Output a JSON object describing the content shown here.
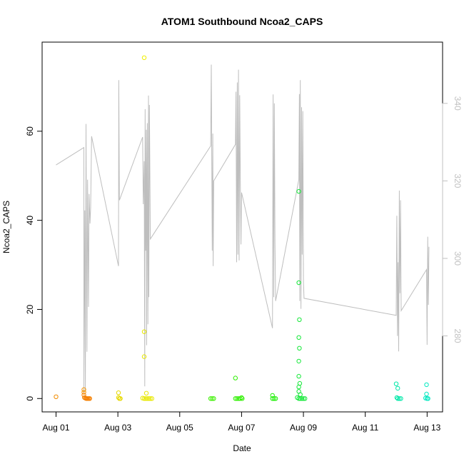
{
  "chart_data": {
    "type": "scatter",
    "title": "ATOM1 Southbound Ncoa2_CAPS",
    "xlabel": "Date",
    "ylabel": "Ncoa2_CAPS",
    "x_ticks": [
      "Aug 01",
      "Aug 03",
      "Aug 05",
      "Aug 07",
      "Aug 09",
      "Aug 11",
      "Aug 13"
    ],
    "x_tick_days": [
      1,
      3,
      5,
      7,
      9,
      11,
      13
    ],
    "xlim_days": [
      0.55,
      13.5
    ],
    "ylim": [
      -3,
      80
    ],
    "y_ticks": [
      0,
      20,
      40,
      60
    ],
    "y2_ticks": [
      280,
      300,
      320,
      340
    ],
    "y2lim": [
      260.4,
      355.8
    ],
    "colors": {
      "line": "#bebebe",
      "right_axis": "#c0c0c0",
      "axis": "#000000"
    },
    "points": [
      {
        "day": 1.0,
        "y": 0.4,
        "color": "#f28c00"
      },
      {
        "day": 1.9,
        "y": 2.0,
        "color": "#f59400"
      },
      {
        "day": 1.9,
        "y": 1.4,
        "color": "#f59400"
      },
      {
        "day": 1.9,
        "y": 0.8,
        "color": "#f57f00"
      },
      {
        "day": 1.92,
        "y": 0.2,
        "color": "#f57f00"
      },
      {
        "day": 1.95,
        "y": 0.1,
        "color": "#f57f00"
      },
      {
        "day": 1.98,
        "y": 0.0,
        "color": "#f57f00"
      },
      {
        "day": 2.0,
        "y": 0.0,
        "color": "#f57f00"
      },
      {
        "day": 2.03,
        "y": 0.0,
        "color": "#f57f00"
      },
      {
        "day": 2.06,
        "y": 0.0,
        "color": "#f57f00"
      },
      {
        "day": 2.09,
        "y": 0.0,
        "color": "#f57f00"
      },
      {
        "day": 3.02,
        "y": 1.3,
        "color": "#e6d800"
      },
      {
        "day": 3.02,
        "y": 0.2,
        "color": "#e6d800"
      },
      {
        "day": 3.05,
        "y": 0.0,
        "color": "#e6d800"
      },
      {
        "day": 3.08,
        "y": 0.0,
        "color": "#e6d800"
      },
      {
        "day": 3.85,
        "y": 76.5,
        "color": "#f0f000"
      },
      {
        "day": 3.85,
        "y": 15.0,
        "color": "#e8e800"
      },
      {
        "day": 3.85,
        "y": 9.4,
        "color": "#e8e800"
      },
      {
        "day": 3.92,
        "y": 1.2,
        "color": "#e8e800"
      },
      {
        "day": 3.8,
        "y": 0.1,
        "color": "#e8e800"
      },
      {
        "day": 3.85,
        "y": 0.0,
        "color": "#e8e800"
      },
      {
        "day": 3.9,
        "y": 0.0,
        "color": "#e8e800"
      },
      {
        "day": 3.95,
        "y": 0.0,
        "color": "#e8e800"
      },
      {
        "day": 4.0,
        "y": 0.0,
        "color": "#e8e800"
      },
      {
        "day": 4.05,
        "y": 0.0,
        "color": "#e8e800"
      },
      {
        "day": 4.1,
        "y": 0.0,
        "color": "#e8e800"
      },
      {
        "day": 6.0,
        "y": 0.0,
        "color": "#3cf000"
      },
      {
        "day": 6.05,
        "y": 0.0,
        "color": "#3cf000"
      },
      {
        "day": 6.1,
        "y": 0.0,
        "color": "#3cf000"
      },
      {
        "day": 6.8,
        "y": 4.6,
        "color": "#2ef000"
      },
      {
        "day": 6.8,
        "y": 0.0,
        "color": "#2ef000"
      },
      {
        "day": 6.85,
        "y": 0.0,
        "color": "#2ef000"
      },
      {
        "day": 6.9,
        "y": 0.0,
        "color": "#2ef000"
      },
      {
        "day": 6.95,
        "y": 0.0,
        "color": "#2ef000"
      },
      {
        "day": 7.0,
        "y": 0.2,
        "color": "#2ef000"
      },
      {
        "day": 7.02,
        "y": 0.0,
        "color": "#2ef000"
      },
      {
        "day": 8.0,
        "y": 0.7,
        "color": "#19ee00"
      },
      {
        "day": 8.0,
        "y": 0.0,
        "color": "#19ee00"
      },
      {
        "day": 8.05,
        "y": 0.0,
        "color": "#19ee00"
      },
      {
        "day": 8.1,
        "y": 0.0,
        "color": "#19ee00"
      },
      {
        "day": 8.85,
        "y": 46.5,
        "color": "#16e83a"
      },
      {
        "day": 8.85,
        "y": 26.0,
        "color": "#16e83a"
      },
      {
        "day": 8.87,
        "y": 17.7,
        "color": "#16e83a"
      },
      {
        "day": 8.85,
        "y": 13.7,
        "color": "#16e83a"
      },
      {
        "day": 8.87,
        "y": 11.3,
        "color": "#16e83a"
      },
      {
        "day": 8.85,
        "y": 8.4,
        "color": "#16e83a"
      },
      {
        "day": 8.85,
        "y": 5.0,
        "color": "#16e83a"
      },
      {
        "day": 8.88,
        "y": 3.4,
        "color": "#16e83a"
      },
      {
        "day": 8.85,
        "y": 2.6,
        "color": "#16e83a"
      },
      {
        "day": 8.85,
        "y": 1.6,
        "color": "#16e83a"
      },
      {
        "day": 8.9,
        "y": 0.9,
        "color": "#16e83a"
      },
      {
        "day": 8.8,
        "y": 0.2,
        "color": "#16e83a"
      },
      {
        "day": 8.85,
        "y": 0.0,
        "color": "#16e83a"
      },
      {
        "day": 8.9,
        "y": 0.0,
        "color": "#16e83a"
      },
      {
        "day": 8.95,
        "y": 0.0,
        "color": "#16e83a"
      },
      {
        "day": 9.0,
        "y": 0.0,
        "color": "#16e83a"
      },
      {
        "day": 9.05,
        "y": 0.0,
        "color": "#16e83a"
      },
      {
        "day": 12.0,
        "y": 3.3,
        "color": "#00e8a8"
      },
      {
        "day": 12.05,
        "y": 2.3,
        "color": "#00e8a8"
      },
      {
        "day": 12.02,
        "y": 0.2,
        "color": "#00e8a8"
      },
      {
        "day": 12.05,
        "y": 0.0,
        "color": "#00e8a8"
      },
      {
        "day": 12.1,
        "y": 0.0,
        "color": "#00e8a8"
      },
      {
        "day": 12.15,
        "y": 0.0,
        "color": "#00e8a8"
      },
      {
        "day": 12.98,
        "y": 3.1,
        "color": "#00e8c0"
      },
      {
        "day": 12.98,
        "y": 1.0,
        "color": "#00e8c0"
      },
      {
        "day": 12.95,
        "y": 0.1,
        "color": "#00e8c0"
      },
      {
        "day": 13.0,
        "y": 0.0,
        "color": "#00e8c0"
      },
      {
        "day": 13.03,
        "y": 0.0,
        "color": "#00e8c0"
      }
    ],
    "line_y2": [
      [
        1.0,
        324.1
      ],
      [
        1.9,
        328.6
      ],
      [
        1.9,
        265.2
      ],
      [
        1.92,
        294.0
      ],
      [
        1.93,
        312.4
      ],
      [
        1.95,
        265.8
      ],
      [
        1.97,
        334.7
      ],
      [
        2.0,
        275.9
      ],
      [
        2.02,
        320.3
      ],
      [
        2.05,
        287.5
      ],
      [
        2.07,
        316.6
      ],
      [
        2.1,
        309.0
      ],
      [
        2.12,
        313.2
      ],
      [
        2.15,
        331.5
      ],
      [
        3.02,
        298.0
      ],
      [
        3.03,
        346.0
      ],
      [
        3.05,
        315.0
      ],
      [
        3.8,
        331.3
      ],
      [
        3.82,
        314.0
      ],
      [
        3.85,
        325.1
      ],
      [
        3.87,
        267.0
      ],
      [
        3.88,
        338.5
      ],
      [
        3.9,
        302.0
      ],
      [
        3.92,
        333.2
      ],
      [
        3.93,
        277.6
      ],
      [
        3.95,
        334.9
      ],
      [
        3.97,
        283.0
      ],
      [
        3.99,
        342.0
      ],
      [
        4.0,
        290.0
      ],
      [
        4.02,
        339.6
      ],
      [
        4.05,
        305.0
      ],
      [
        6.0,
        329.0
      ],
      [
        6.02,
        350.0
      ],
      [
        6.05,
        302.0
      ],
      [
        6.07,
        332.2
      ],
      [
        6.08,
        298.0
      ],
      [
        6.1,
        320.0
      ],
      [
        6.8,
        329.4
      ],
      [
        6.82,
        343.0
      ],
      [
        6.84,
        299.0
      ],
      [
        6.86,
        345.4
      ],
      [
        6.88,
        301.0
      ],
      [
        6.9,
        348.7
      ],
      [
        6.92,
        299.5
      ],
      [
        6.94,
        342.1
      ],
      [
        6.96,
        319.0
      ],
      [
        6.98,
        303.6
      ],
      [
        7.0,
        317.0
      ],
      [
        8.0,
        282.0
      ],
      [
        8.02,
        342.3
      ],
      [
        8.04,
        290.0
      ],
      [
        8.06,
        340.0
      ],
      [
        8.08,
        304.0
      ],
      [
        8.1,
        289.0
      ],
      [
        8.85,
        320.3
      ],
      [
        8.87,
        342.4
      ],
      [
        8.88,
        289.0
      ],
      [
        8.9,
        346.0
      ],
      [
        8.92,
        287.0
      ],
      [
        8.94,
        339.0
      ],
      [
        8.96,
        301.0
      ],
      [
        8.98,
        338.0
      ],
      [
        9.0,
        294.0
      ],
      [
        9.02,
        289.7
      ],
      [
        12.0,
        285.3
      ],
      [
        12.02,
        311.0
      ],
      [
        12.04,
        280.0
      ],
      [
        12.06,
        299.0
      ],
      [
        12.08,
        276.0
      ],
      [
        12.1,
        317.5
      ],
      [
        12.12,
        291.0
      ],
      [
        12.14,
        315.0
      ],
      [
        12.16,
        286.5
      ],
      [
        12.98,
        297.1
      ],
      [
        13.0,
        277.7
      ],
      [
        13.02,
        305.6
      ],
      [
        13.04,
        288.0
      ],
      [
        13.06,
        303.0
      ]
    ]
  }
}
